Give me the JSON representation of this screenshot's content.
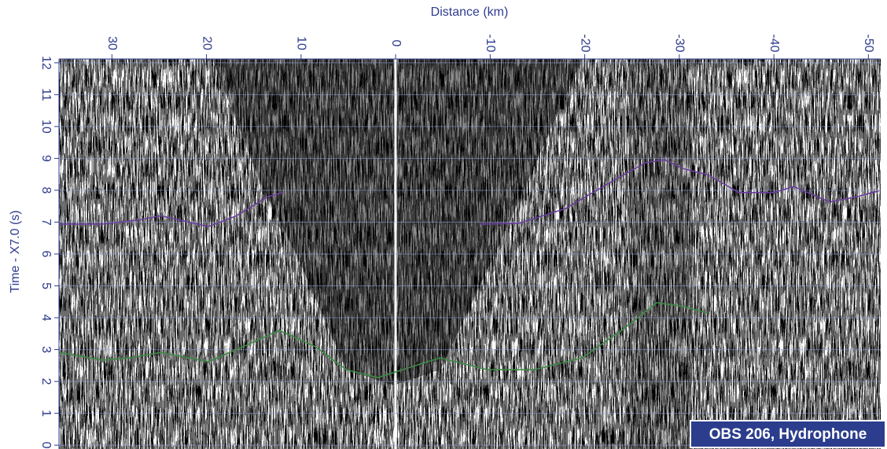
{
  "chart_data": {
    "type": "line",
    "x_label": "Distance (km)",
    "y_label": "Time - X7.0 (s)",
    "annotation": "OBS 206, Hydrophone",
    "xlim": [
      35.6,
      -51.3
    ],
    "xticks": [
      30,
      20,
      10,
      0,
      -10,
      -20,
      -30,
      -40,
      -50
    ],
    "ylim": [
      -0.12,
      12.12
    ],
    "yticks": [
      0,
      1,
      2,
      3,
      4,
      5,
      6,
      7,
      8,
      9,
      10,
      11,
      12
    ],
    "grid": true,
    "series": [
      {
        "color": "#6b3fa0",
        "x": [
          35.6,
          31,
          27.3,
          24.8,
          19.8,
          16.9,
          13.5,
          11.9,
          null,
          -8.9,
          -13,
          -18,
          -23,
          -26.4,
          -28.4,
          -30.5,
          -33,
          -36.3,
          -40,
          -42.1,
          -45.9,
          -48.8,
          -51.1
        ],
        "values": [
          6.94,
          6.94,
          7.06,
          7.2,
          6.86,
          7.19,
          7.8,
          7.93,
          null,
          6.94,
          6.96,
          7.43,
          8.3,
          8.86,
          8.96,
          8.67,
          8.49,
          7.93,
          7.93,
          8.12,
          7.63,
          7.8,
          7.98
        ]
      },
      {
        "color": "#3d8a45",
        "x": [
          35.6,
          31,
          28.1,
          24.8,
          19.8,
          16,
          12.3,
          8.6,
          5.2,
          1.9,
          -4.7,
          -9.7,
          -14.7,
          -19.7,
          -23.9,
          -27.6,
          -30.5,
          -33
        ],
        "values": [
          2.91,
          2.67,
          2.74,
          2.91,
          2.62,
          3.11,
          3.6,
          3.11,
          2.37,
          2.12,
          2.74,
          2.37,
          2.37,
          2.74,
          3.6,
          4.47,
          4.35,
          4.15
        ]
      }
    ]
  }
}
